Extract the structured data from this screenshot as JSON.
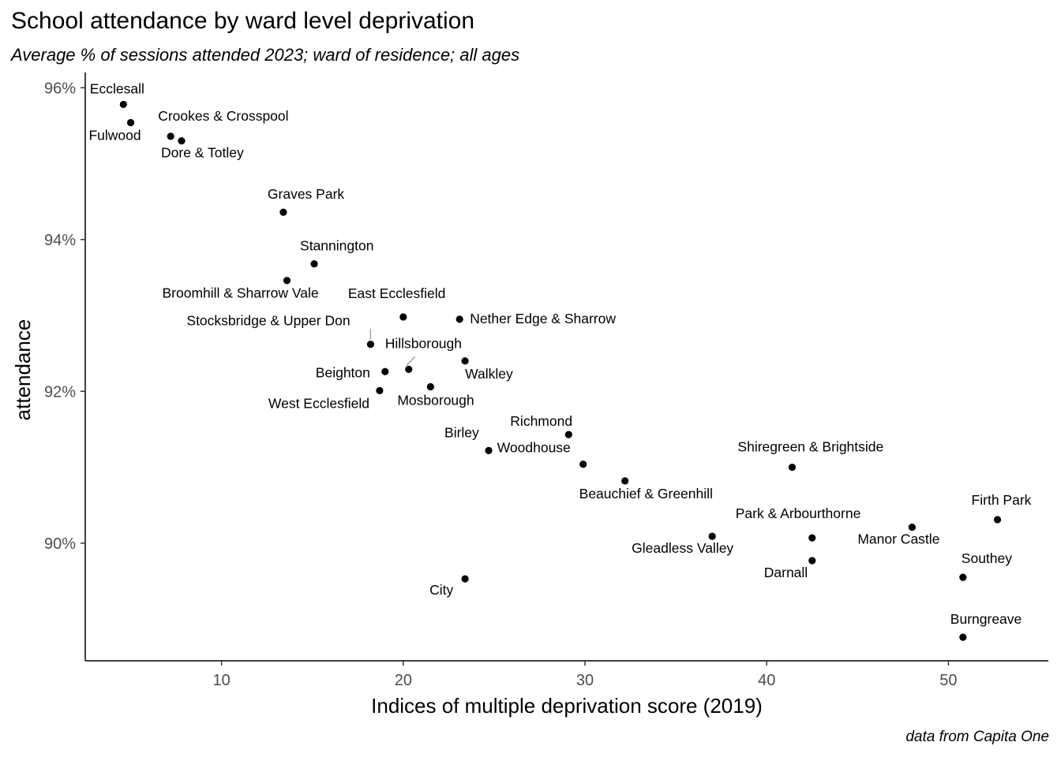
{
  "chart_data": {
    "type": "scatter",
    "title": "School attendance by ward level deprivation",
    "subtitle": "Average % of sessions attended 2023; ward of residence; all ages",
    "caption": "data from Capita One",
    "xlabel": "Indices of multiple deprivation score (2019)",
    "ylabel": "attendance",
    "xlim": [
      2.5,
      55.5
    ],
    "ylim": [
      88.45,
      96.2
    ],
    "x_ticks": [
      10,
      20,
      30,
      40,
      50
    ],
    "x_tick_labels": [
      "10",
      "20",
      "30",
      "40",
      "50"
    ],
    "y_ticks": [
      90,
      92,
      94,
      96
    ],
    "y_tick_labels": [
      "90%",
      "92%",
      "94%",
      "96%"
    ],
    "grid": false,
    "point_color": "#000000",
    "points": [
      {
        "label": "Ecclesall",
        "x": 4.6,
        "y": 95.78
      },
      {
        "label": "Fulwood",
        "x": 5.0,
        "y": 95.54
      },
      {
        "label": "Crookes & Crosspool",
        "x": 7.2,
        "y": 95.36
      },
      {
        "label": "Dore & Totley",
        "x": 7.8,
        "y": 95.3
      },
      {
        "label": "Graves Park",
        "x": 13.4,
        "y": 94.36
      },
      {
        "label": "Stannington",
        "x": 15.1,
        "y": 93.68
      },
      {
        "label": "Broomhill & Sharrow Vale",
        "x": 13.6,
        "y": 93.46
      },
      {
        "label": "East Ecclesfield",
        "x": 20.0,
        "y": 92.98
      },
      {
        "label": "Nether Edge & Sharrow",
        "x": 23.1,
        "y": 92.95
      },
      {
        "label": "Stocksbridge & Upper Don",
        "x": 18.2,
        "y": 92.62
      },
      {
        "label": "Hillsborough",
        "x": 20.3,
        "y": 92.29
      },
      {
        "label": "Walkley",
        "x": 23.4,
        "y": 92.4
      },
      {
        "label": "Beighton",
        "x": 19.0,
        "y": 92.26
      },
      {
        "label": "West Ecclesfield",
        "x": 18.7,
        "y": 92.01
      },
      {
        "label": "Mosborough",
        "x": 21.5,
        "y": 92.06
      },
      {
        "label": "Richmond",
        "x": 29.1,
        "y": 91.43
      },
      {
        "label": "Birley",
        "x": 24.7,
        "y": 91.22
      },
      {
        "label": "Woodhouse",
        "x": 29.9,
        "y": 91.04
      },
      {
        "label": "Beauchief & Greenhill",
        "x": 32.2,
        "y": 90.82
      },
      {
        "label": "Shiregreen & Brightside",
        "x": 41.4,
        "y": 91.0
      },
      {
        "label": "Gleadless Valley",
        "x": 37.0,
        "y": 90.09
      },
      {
        "label": "Park & Arbourthorne",
        "x": 42.5,
        "y": 90.07
      },
      {
        "label": "Darnall",
        "x": 42.5,
        "y": 89.77
      },
      {
        "label": "Manor Castle",
        "x": 48.0,
        "y": 90.21
      },
      {
        "label": "Firth Park",
        "x": 52.7,
        "y": 90.31
      },
      {
        "label": "Southey",
        "x": 50.8,
        "y": 89.55
      },
      {
        "label": "City",
        "x": 23.4,
        "y": 89.53
      },
      {
        "label": "Burngreave",
        "x": 50.8,
        "y": 88.76
      }
    ]
  }
}
